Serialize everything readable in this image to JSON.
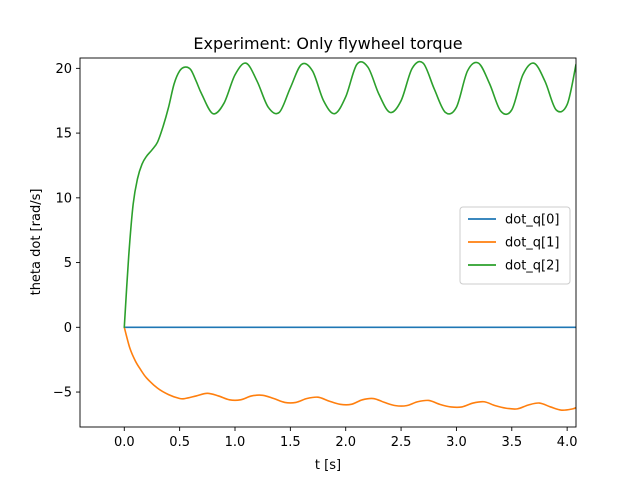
{
  "chart_data": {
    "type": "line",
    "title": "Experiment: Only flywheel torque",
    "xlabel": "t [s]",
    "ylabel": "theta dot [rad/s]",
    "xlim": [
      -0.4,
      4.08
    ],
    "ylim": [
      -7.7,
      20.8
    ],
    "xticks": [
      0.0,
      0.5,
      1.0,
      1.5,
      2.0,
      2.5,
      3.0,
      3.5,
      4.0
    ],
    "xtick_labels": [
      "0.0",
      "0.5",
      "1.0",
      "1.5",
      "2.0",
      "2.5",
      "3.0",
      "3.5",
      "4.0"
    ],
    "yticks": [
      -5,
      0,
      5,
      10,
      15,
      20
    ],
    "ytick_labels": [
      "−5",
      "0",
      "5",
      "10",
      "15",
      "20"
    ],
    "grid": false,
    "legend_position": "center-right",
    "series": [
      {
        "name": "dot_q[0]",
        "color": "#1f77b4",
        "x": [
          0.0,
          4.08
        ],
        "y": [
          0.0,
          0.0
        ]
      },
      {
        "name": "dot_q[1]",
        "color": "#ff7f0e",
        "x": [
          0.0,
          0.05,
          0.1,
          0.15,
          0.2,
          0.3,
          0.4,
          0.5,
          0.55,
          0.65,
          0.75,
          0.85,
          0.95,
          1.05,
          1.15,
          1.25,
          1.35,
          1.45,
          1.55,
          1.65,
          1.75,
          1.85,
          1.95,
          2.05,
          2.15,
          2.25,
          2.35,
          2.45,
          2.55,
          2.65,
          2.75,
          2.85,
          2.95,
          3.05,
          3.15,
          3.25,
          3.35,
          3.45,
          3.55,
          3.65,
          3.75,
          3.85,
          3.95,
          4.05,
          4.08
        ],
        "y": [
          0.0,
          -1.6,
          -2.6,
          -3.3,
          -3.9,
          -4.7,
          -5.2,
          -5.5,
          -5.5,
          -5.3,
          -5.1,
          -5.3,
          -5.6,
          -5.6,
          -5.3,
          -5.25,
          -5.5,
          -5.8,
          -5.8,
          -5.5,
          -5.4,
          -5.7,
          -5.95,
          -5.95,
          -5.6,
          -5.5,
          -5.8,
          -6.05,
          -6.05,
          -5.75,
          -5.65,
          -5.95,
          -6.15,
          -6.15,
          -5.85,
          -5.75,
          -6.05,
          -6.25,
          -6.3,
          -6.0,
          -5.85,
          -6.15,
          -6.4,
          -6.3,
          -6.2
        ]
      },
      {
        "name": "dot_q[2]",
        "color": "#2ca02c",
        "x": [
          0.0,
          0.04,
          0.08,
          0.12,
          0.16,
          0.2,
          0.25,
          0.3,
          0.35,
          0.4,
          0.45,
          0.5,
          0.55,
          0.6,
          0.65,
          0.7,
          0.8,
          0.9,
          1.0,
          1.1,
          1.2,
          1.3,
          1.4,
          1.5,
          1.6,
          1.7,
          1.8,
          1.9,
          2.0,
          2.1,
          2.2,
          2.3,
          2.4,
          2.5,
          2.6,
          2.7,
          2.8,
          2.9,
          3.0,
          3.1,
          3.2,
          3.3,
          3.4,
          3.5,
          3.6,
          3.7,
          3.8,
          3.9,
          4.0,
          4.08
        ],
        "y": [
          0.0,
          5.5,
          9.5,
          11.5,
          12.6,
          13.2,
          13.7,
          14.3,
          15.5,
          17.0,
          18.8,
          19.8,
          20.1,
          19.9,
          19.0,
          18.0,
          16.5,
          17.3,
          19.5,
          20.4,
          19.0,
          17.0,
          16.6,
          18.5,
          20.3,
          19.8,
          17.5,
          16.5,
          17.8,
          20.3,
          20.1,
          18.0,
          16.6,
          17.5,
          20.0,
          20.4,
          18.4,
          16.6,
          17.0,
          19.8,
          20.4,
          18.8,
          16.7,
          16.8,
          19.5,
          20.4,
          19.0,
          16.8,
          17.2,
          20.3
        ]
      }
    ]
  }
}
